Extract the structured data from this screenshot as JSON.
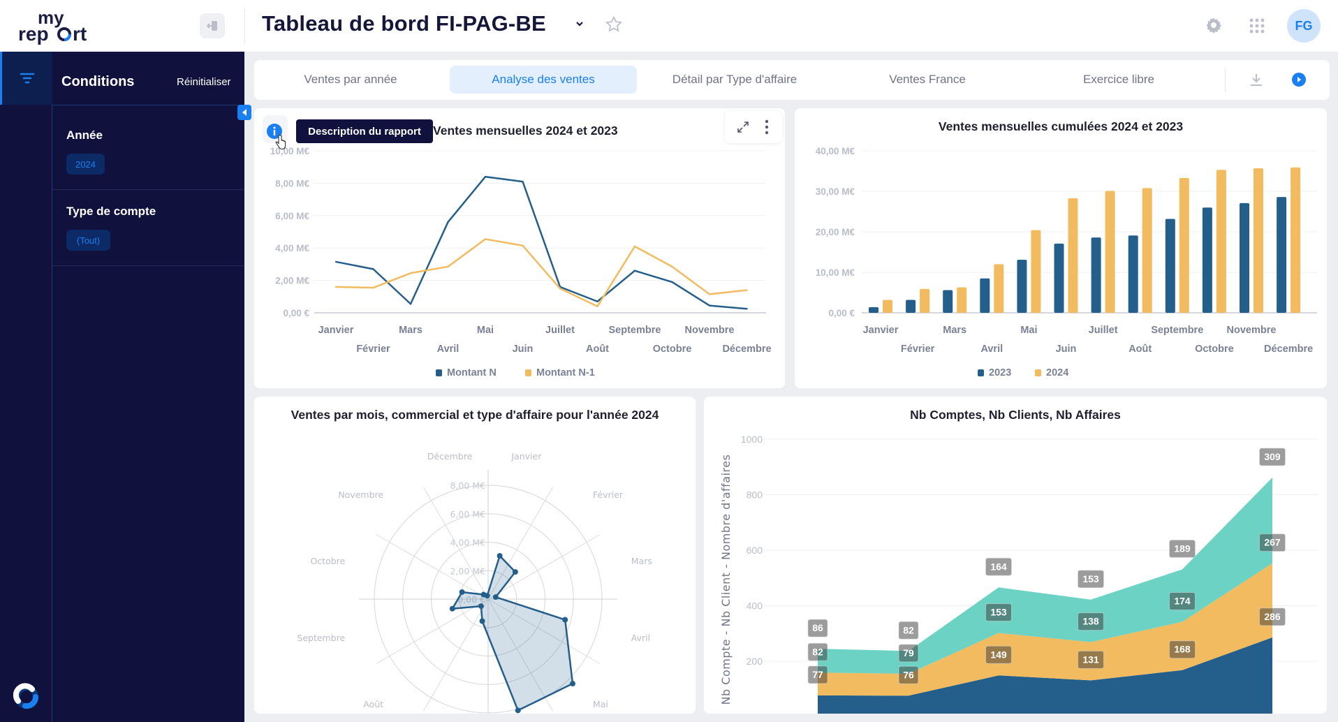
{
  "header": {
    "title": "Tableau de bord FI-PAG-BE",
    "avatar_initials": "FG",
    "logo_text_top": "my",
    "logo_text_bottom": "report"
  },
  "sidebar": {
    "title": "Conditions",
    "reset_label": "Réinitialiser",
    "filters": [
      {
        "label": "Année",
        "value": "2024"
      },
      {
        "label": "Type de compte",
        "value": "(Tout)"
      }
    ]
  },
  "tabs": [
    {
      "label": "Ventes par année",
      "active": false
    },
    {
      "label": "Analyse des ventes",
      "active": true
    },
    {
      "label": "Détail par Type d'affaire",
      "active": false
    },
    {
      "label": "Ventes France",
      "active": false
    },
    {
      "label": "Exercice libre",
      "active": false
    }
  ],
  "tooltip": "Description du rapport",
  "colors": {
    "blue": "#245e8a",
    "orange": "#f2bb5f",
    "teal": "#6bd2c4",
    "accent": "#1a7ff0",
    "sidebar": "#10113d"
  },
  "chart_data": [
    {
      "type": "line",
      "title": "Ventes mensuelles 2024 et 2023",
      "categories": [
        "Janvier",
        "Février",
        "Mars",
        "Avril",
        "Mai",
        "Juin",
        "Juillet",
        "Août",
        "Septembre",
        "Octobre",
        "Novembre",
        "Décembre"
      ],
      "yticks": [
        "0,00 €",
        "2,00 M€",
        "4,00 M€",
        "6,00 M€",
        "8,00 M€",
        "10,00 M€"
      ],
      "ylim": [
        0,
        10
      ],
      "unit": "M€",
      "legend": "bottom",
      "series": [
        {
          "name": "Montant N",
          "color": "#245e8a",
          "values": [
            3.15,
            2.7,
            0.55,
            5.6,
            8.4,
            8.1,
            1.6,
            0.7,
            2.6,
            1.9,
            0.45,
            0.25
          ]
        },
        {
          "name": "Montant N-1",
          "color": "#f2bb5f",
          "values": [
            1.6,
            1.55,
            2.45,
            2.85,
            4.55,
            4.15,
            1.5,
            0.4,
            4.1,
            2.85,
            1.15,
            1.4
          ]
        }
      ]
    },
    {
      "type": "bar",
      "title": "Ventes mensuelles cumulées 2024 et 2023",
      "categories": [
        "Janvier",
        "Février",
        "Mars",
        "Avril",
        "Mai",
        "Juin",
        "Juillet",
        "Août",
        "Septembre",
        "Octobre",
        "Novembre",
        "Décembre"
      ],
      "yticks": [
        "0,00 €",
        "10,00 M€",
        "20,00 M€",
        "30,00 M€",
        "40,00 M€"
      ],
      "ylim": [
        0,
        40
      ],
      "unit": "M€",
      "legend": "bottom",
      "series": [
        {
          "name": "2023",
          "color": "#245e8a",
          "values": [
            1.4,
            3.2,
            5.6,
            8.5,
            13.1,
            17.1,
            18.6,
            19.1,
            23.2,
            26.0,
            27.1,
            28.6
          ]
        },
        {
          "name": "2024",
          "color": "#f2bb5f",
          "values": [
            3.2,
            5.9,
            6.3,
            12.0,
            20.4,
            28.3,
            30.1,
            30.8,
            33.3,
            35.3,
            35.7,
            35.9
          ]
        }
      ]
    },
    {
      "type": "radar",
      "title": "Ventes par mois, commercial et type d'affaire pour l'année 2024",
      "categories": [
        "Janvier",
        "Février",
        "Mars",
        "Avril",
        "Mai",
        "Juin",
        "Juillet",
        "Août",
        "Septembre",
        "Octobre",
        "Novembre",
        "Décembre"
      ],
      "rticks": [
        "0,00 €",
        "2,00 M€",
        "4,00 M€",
        "6,00 M€",
        "8,00 M€"
      ],
      "rlim": [
        0,
        8
      ],
      "unit": "M€",
      "series": [
        {
          "color": "#245e8a",
          "values": [
            3.15,
            2.7,
            0.55,
            5.6,
            8.4,
            8.1,
            1.6,
            0.7,
            2.6,
            1.9,
            0.45,
            0.25
          ]
        }
      ]
    },
    {
      "type": "area",
      "stacked": true,
      "title": "Nb Comptes, Nb Clients, Nb Affaires",
      "ylabel": "Nb Compte - Nb Client - Nombre d'affaires",
      "yticks": [
        "200",
        "400",
        "600",
        "800",
        "1000"
      ],
      "ylim": [
        0,
        1000
      ],
      "series": [
        {
          "color": "#245e8a",
          "values": [
            77,
            76,
            149,
            131,
            168,
            286
          ]
        },
        {
          "color": "#f2bb5f",
          "values": [
            82,
            79,
            153,
            138,
            174,
            267
          ]
        },
        {
          "color": "#6bd2c4",
          "values": [
            86,
            82,
            164,
            153,
            189,
            309
          ]
        }
      ]
    }
  ]
}
